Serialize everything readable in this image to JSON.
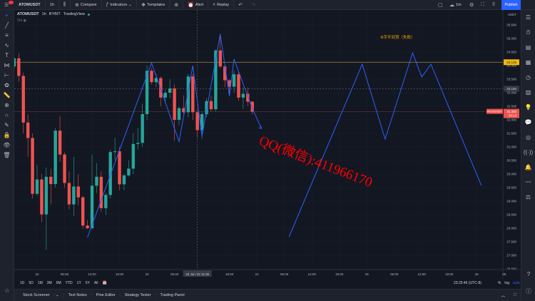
{
  "toolbar": {
    "symbol": "ATOMUSDT",
    "interval": "1h",
    "compare": "Compare",
    "indicators": "Indicators",
    "templates": "Templates",
    "alert": "Alert",
    "replay": "Replay",
    "timeframe": "1m",
    "publish": "Publish"
  },
  "legend": {
    "symbol": "ATOMUSDT",
    "interval": "1h",
    "exchange": "BYBIT",
    "source": "TradingView",
    "vol": "Vol"
  },
  "colors": {
    "up": "#26a69a",
    "down": "#ef5350",
    "drawing": "#2962ff",
    "hline": "#f0b90b",
    "accent": "#2962ff",
    "watermark": "#ff0000",
    "annotation": "#f7a600"
  },
  "chart_data": {
    "type": "candlestick",
    "start": "2022-06-21 19:00",
    "interval_hours": 1,
    "candles": [
      [
        33.97,
        34.3,
        33.9,
        34.27
      ],
      [
        34.27,
        34.45,
        33.4,
        33.62
      ],
      [
        33.62,
        33.74,
        31.5,
        31.9
      ],
      [
        31.9,
        32.2,
        30.63,
        31.33
      ],
      [
        31.33,
        31.5,
        29.1,
        29.27
      ],
      [
        29.27,
        30.34,
        29.2,
        29.8
      ],
      [
        29.8,
        30.0,
        28.22,
        28.51
      ],
      [
        28.51,
        30.24,
        27.21,
        29.9
      ],
      [
        29.9,
        30.2,
        28.88,
        29.63
      ],
      [
        29.63,
        31.7,
        29.5,
        31.6
      ],
      [
        31.6,
        32.13,
        30.45,
        30.72
      ],
      [
        30.72,
        30.8,
        29.5,
        29.67
      ],
      [
        29.67,
        30.1,
        28.7,
        28.88
      ],
      [
        28.88,
        30.63,
        28.45,
        29.54
      ],
      [
        29.54,
        30.0,
        28.85,
        29.14
      ],
      [
        29.14,
        29.2,
        28.0,
        28.1
      ],
      [
        28.1,
        28.3,
        27.97,
        28.0
      ],
      [
        28.0,
        30.72,
        27.95,
        29.57
      ],
      [
        29.57,
        30.4,
        29.3,
        29.9
      ],
      [
        29.9,
        30.1,
        28.6,
        28.74
      ],
      [
        28.74,
        29.3,
        28.5,
        29.23
      ],
      [
        29.23,
        30.9,
        29.1,
        30.81
      ],
      [
        30.81,
        31.34,
        30.5,
        30.84
      ],
      [
        30.84,
        31.0,
        29.4,
        29.62
      ],
      [
        29.62,
        30.0,
        29.4,
        29.95
      ],
      [
        29.95,
        30.5,
        29.9,
        30.2
      ],
      [
        30.2,
        31.5,
        30.0,
        31.11
      ],
      [
        31.11,
        31.7,
        30.9,
        31.15
      ],
      [
        31.15,
        32.6,
        31.0,
        32.21
      ],
      [
        32.21,
        34.0,
        32.0,
        33.81
      ],
      [
        33.81,
        33.9,
        33.3,
        33.39
      ],
      [
        33.39,
        33.7,
        33.2,
        33.54
      ],
      [
        33.54,
        33.6,
        32.5,
        32.82
      ],
      [
        32.82,
        33.1,
        32.6,
        33.0
      ],
      [
        33.0,
        33.5,
        32.8,
        33.16
      ],
      [
        33.16,
        33.3,
        31.24,
        32.0
      ],
      [
        32.0,
        32.5,
        31.8,
        32.43
      ],
      [
        32.43,
        32.9,
        32.2,
        32.28
      ],
      [
        32.28,
        33.7,
        32.1,
        33.6
      ],
      [
        33.6,
        33.7,
        32.0,
        32.28
      ],
      [
        32.28,
        32.4,
        31.34,
        31.62
      ],
      [
        31.62,
        32.3,
        31.3,
        32.21
      ],
      [
        32.21,
        32.8,
        32.1,
        32.69
      ],
      [
        32.69,
        32.9,
        32.3,
        32.39
      ],
      [
        32.39,
        34.6,
        32.3,
        34.56
      ],
      [
        34.56,
        35.18,
        33.9,
        33.97
      ],
      [
        33.97,
        34.0,
        33.2,
        33.46
      ],
      [
        33.46,
        33.5,
        32.9,
        33.22
      ],
      [
        33.22,
        33.8,
        33.0,
        33.68
      ],
      [
        33.68,
        33.8,
        32.7,
        32.82
      ],
      [
        32.82,
        33.2,
        32.4,
        32.96
      ],
      [
        32.96,
        33.2,
        32.5,
        32.67
      ],
      [
        32.67,
        32.7,
        32.2,
        32.3
      ]
    ],
    "ylim": [
      26.5,
      36.0
    ],
    "y_ticks": [
      "35.500",
      "35.000",
      "34.500",
      "34.000",
      "33.500",
      "33.000",
      "32.500",
      "32.000",
      "31.500",
      "31.000",
      "30.500",
      "30.000",
      "29.500",
      "29.000",
      "28.500",
      "28.000",
      "27.500",
      "27.000",
      "26.500"
    ],
    "y_unit": "USDT",
    "x_ticks": [
      {
        "t": "06-22 00:00",
        "label": "22"
      },
      {
        "t": "06-22 06:00",
        "label": "06:00"
      },
      {
        "t": "06-22 12:00",
        "label": "12:00"
      },
      {
        "t": "06-22 18:00",
        "label": "18:00"
      },
      {
        "t": "06-23 00:00",
        "label": "23"
      },
      {
        "t": "06-23 06:00",
        "label": "06:00"
      },
      {
        "t": "06-23 18:00",
        "label": "18:00"
      },
      {
        "t": "06-24 00:00",
        "label": "24"
      },
      {
        "t": "06-24 06:00",
        "label": "06:00"
      },
      {
        "t": "06-24 12:00",
        "label": "12:00"
      },
      {
        "t": "06-24 18:00",
        "label": "18:00"
      },
      {
        "t": "06-25 00:00",
        "label": "25"
      },
      {
        "t": "06-25 06:00",
        "label": "06:00"
      },
      {
        "t": "06-25 12:00",
        "label": "12:00"
      },
      {
        "t": "06-25 18:00",
        "label": "18:00"
      },
      {
        "t": "06-26 00:00",
        "label": "26"
      },
      {
        "t": "06-26 06:00",
        "label": "06"
      }
    ],
    "crosshair": {
      "t": "06-23 11:00",
      "label": "23 Jun '22  11:00",
      "price": "33.150"
    },
    "horizontal_line": {
      "price": 34.125,
      "label": "34.125"
    },
    "last_price": {
      "price": 32.3,
      "label": "32.300",
      "countdown": "34:14",
      "symbol": "ATOMUSDT"
    },
    "drawings": [
      [
        [
          "06-22 11:00",
          27.66
        ],
        [
          "06-23 01:00",
          34.1
        ],
        [
          "06-23 07:00",
          31.2
        ],
        [
          "06-23 10:00",
          34.0
        ],
        [
          "06-23 12:00",
          31.4
        ],
        [
          "06-23 16:00",
          35.16
        ],
        [
          "06-23 18:00",
          32.87
        ],
        [
          "06-23 19:00",
          34.24
        ],
        [
          "06-23 23:00",
          32.42
        ],
        [
          "06-24 01:00",
          31.68
        ]
      ],
      [
        [
          "06-24 07:00",
          27.68
        ],
        [
          "06-24 23:00",
          34.05
        ],
        [
          "06-25 04:00",
          31.29
        ],
        [
          "06-25 10:00",
          34.47
        ],
        [
          "06-25 12:00",
          33.58
        ],
        [
          "06-25 14:00",
          34.05
        ],
        [
          "06-26 01:00",
          29.58
        ]
      ]
    ],
    "annotation": {
      "text": "N字不到顶（失败）",
      "t": "06-25 03:00",
      "price": 35.0
    }
  },
  "watermark": "QQ(微信):411966170",
  "ranges": [
    "1D",
    "5D",
    "1M",
    "3M",
    "6M",
    "YTD",
    "1Y",
    "5Y",
    "All"
  ],
  "status": {
    "time": "23:25:46 (UTC-8)",
    "percent": "%",
    "log": "log",
    "auto": "auto"
  },
  "bottom_tabs": [
    "Stock Screener",
    "Text Notes",
    "Pine Editor",
    "Strategy Tester",
    "Trading Panel"
  ]
}
